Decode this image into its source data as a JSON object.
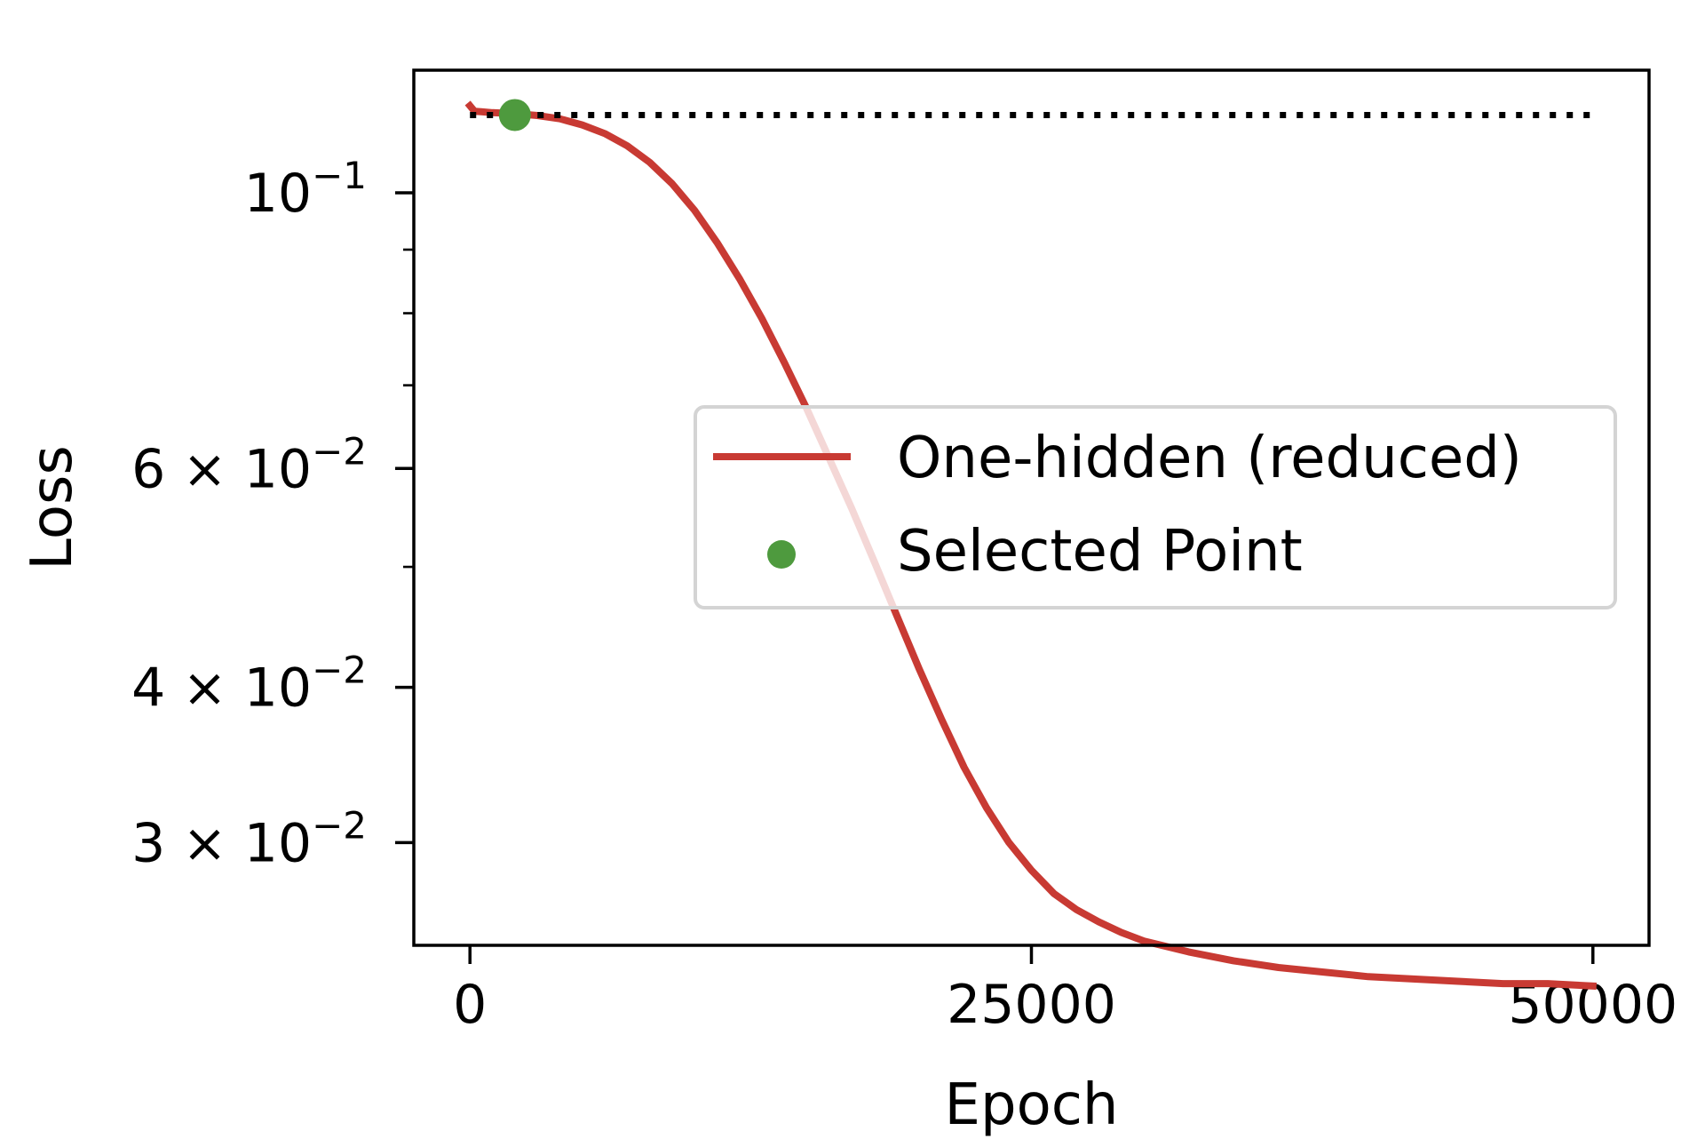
{
  "chart_data": {
    "type": "line",
    "xlabel": "Epoch",
    "ylabel": "Loss",
    "xlim": [
      -2500,
      52500
    ],
    "ylim": [
      0.0248,
      0.1255
    ],
    "yscale": "log",
    "grid": false,
    "legend_position": "center-right",
    "x_ticks": [
      {
        "value": 0,
        "label": "0"
      },
      {
        "value": 25000,
        "label": "25000"
      },
      {
        "value": 50000,
        "label": "50000"
      }
    ],
    "y_major_ticks": [
      {
        "value": 0.1,
        "base": "10",
        "exp": "−1"
      },
      {
        "value": 0.06,
        "base": "6 × 10",
        "exp": "−2"
      },
      {
        "value": 0.04,
        "base": "4 × 10",
        "exp": "−2"
      },
      {
        "value": 0.03,
        "base": "3 × 10",
        "exp": "−2"
      }
    ],
    "y_minor_ticks": [
      0.09,
      0.08,
      0.07,
      0.05
    ],
    "series": [
      {
        "name": "One-hidden (reduced)",
        "kind": "line",
        "color": "#c83a33",
        "x": [
          0,
          200,
          500,
          1000,
          2000,
          3000,
          4000,
          5000,
          6000,
          7000,
          8000,
          9000,
          10000,
          11000,
          12000,
          13000,
          14000,
          15000,
          16000,
          17000,
          18000,
          19000,
          20000,
          21000,
          22000,
          23000,
          24000,
          25000,
          26000,
          27000,
          28000,
          29000,
          30000,
          32000,
          34000,
          36000,
          38000,
          40000,
          42000,
          44000,
          46000,
          48000,
          50000
        ],
        "y": [
          0.1175,
          0.1163,
          0.1162,
          0.116,
          0.1158,
          0.1154,
          0.1147,
          0.1134,
          0.1116,
          0.1091,
          0.1058,
          0.1017,
          0.0968,
          0.0912,
          0.0853,
          0.0792,
          0.073,
          0.067,
          0.0611,
          0.0557,
          0.0505,
          0.0457,
          0.0414,
          0.0377,
          0.0345,
          0.032,
          0.03,
          0.0285,
          0.0273,
          0.0265,
          0.0259,
          0.0254,
          0.025,
          0.0245,
          0.0241,
          0.0238,
          0.0236,
          0.0234,
          0.0233,
          0.0232,
          0.0231,
          0.0231,
          0.023
        ]
      },
      {
        "name": "Selected Point",
        "kind": "scatter",
        "color": "#4e9a3e",
        "x": [
          2000
        ],
        "y": [
          0.1155
        ]
      },
      {
        "kind": "hline",
        "style": "dotted",
        "color": "#000000",
        "x": [
          0,
          50000
        ],
        "y": [
          0.1155,
          0.1155
        ]
      }
    ]
  }
}
